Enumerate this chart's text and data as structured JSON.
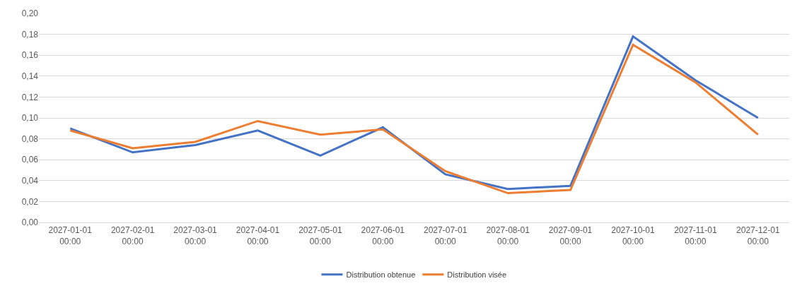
{
  "chart_data": {
    "type": "line",
    "categories": [
      "2027-01-01 00:00",
      "2027-02-01 00:00",
      "2027-03-01 00:00",
      "2027-04-01 00:00",
      "2027-05-01 00:00",
      "2027-06-01 00:00",
      "2027-07-01 00:00",
      "2027-08-01 00:00",
      "2027-09-01 00:00",
      "2027-10-01 00:00",
      "2027-11-01 00:00",
      "2027-12-01 00:00"
    ],
    "series": [
      {
        "name": "Distribution obtenue",
        "color": "#4472c4",
        "values": [
          0.09,
          0.067,
          0.074,
          0.088,
          0.064,
          0.091,
          0.046,
          0.032,
          0.035,
          0.178,
          0.136,
          0.1
        ]
      },
      {
        "name": "Distribution visée",
        "color": "#ed7d31",
        "values": [
          0.088,
          0.071,
          0.077,
          0.097,
          0.084,
          0.089,
          0.049,
          0.028,
          0.031,
          0.17,
          0.134,
          0.084
        ]
      }
    ],
    "ylim": [
      0,
      0.2
    ],
    "yticks": [
      {
        "value": 0,
        "label": "0,00"
      },
      {
        "value": 0.02,
        "label": "0,02"
      },
      {
        "value": 0.04,
        "label": "0,04"
      },
      {
        "value": 0.06,
        "label": "0,06"
      },
      {
        "value": 0.08,
        "label": "0,08"
      },
      {
        "value": 0.1,
        "label": "0,10"
      },
      {
        "value": 0.12,
        "label": "0,12"
      },
      {
        "value": 0.14,
        "label": "0,14"
      },
      {
        "value": 0.16,
        "label": "0,16"
      },
      {
        "value": 0.18,
        "label": "0,18"
      },
      {
        "value": 0.2,
        "label": "0,20"
      }
    ],
    "grid": "y",
    "legend": "bottom",
    "marker": "none",
    "line_style": "solid"
  }
}
